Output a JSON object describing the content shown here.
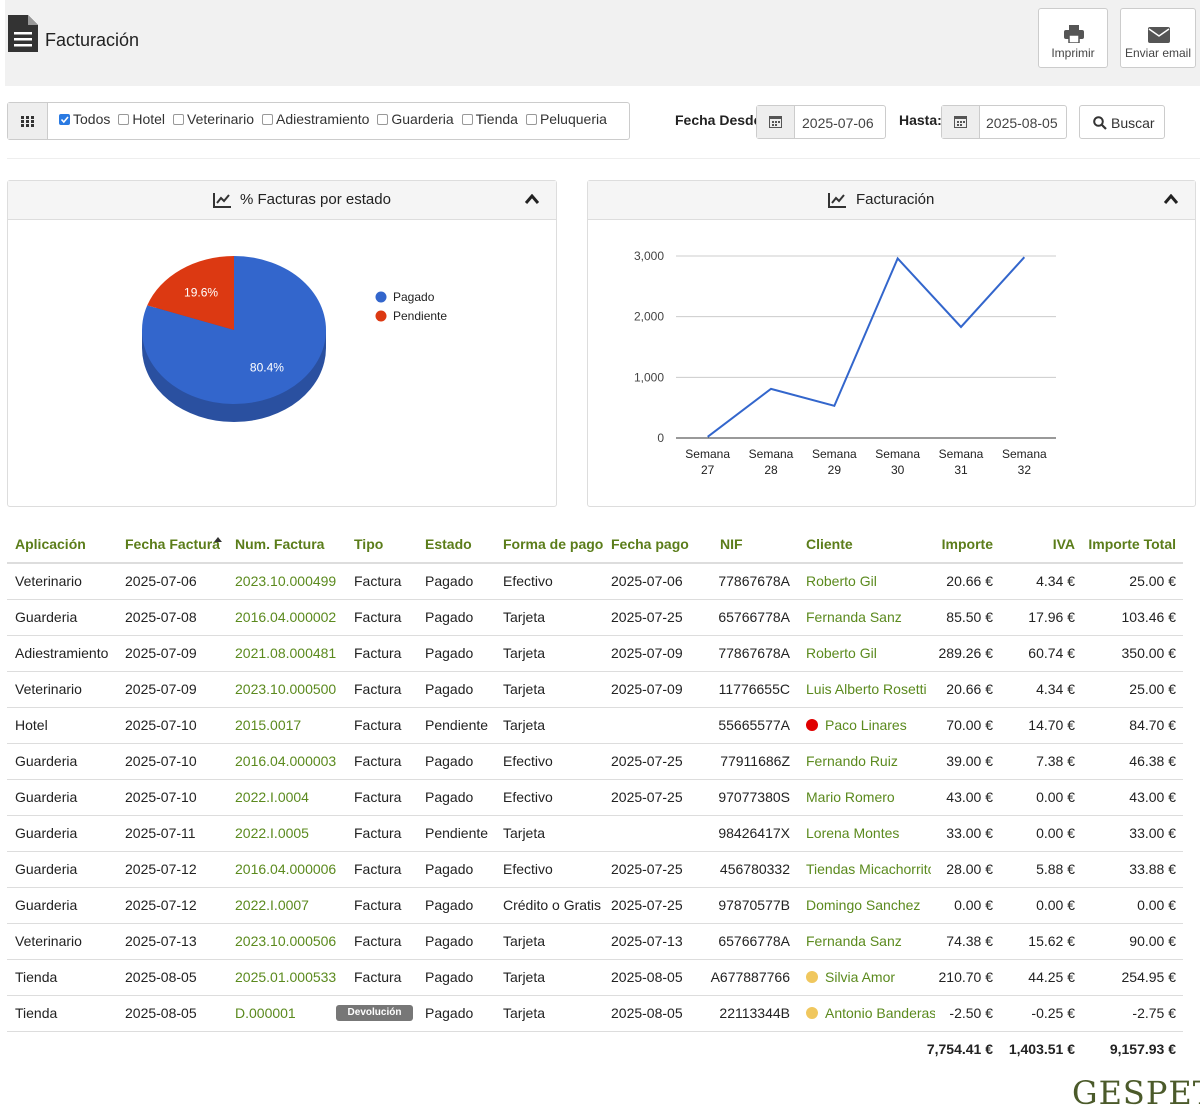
{
  "header": {
    "title": "Facturación",
    "buttons": [
      "Imprimir",
      "Enviar email"
    ]
  },
  "filters": {
    "apps": [
      {
        "label": "Todos",
        "checked": true
      },
      {
        "label": "Hotel",
        "checked": false
      },
      {
        "label": "Veterinario",
        "checked": false
      },
      {
        "label": "Adiestramiento",
        "checked": false
      },
      {
        "label": "Guarderia",
        "checked": false
      },
      {
        "label": "Tienda",
        "checked": false
      },
      {
        "label": "Peluqueria",
        "checked": false
      }
    ],
    "from_label": "Fecha Desde:",
    "from": "2025-07-06",
    "to_label": "Hasta:",
    "to": "2025-08-05",
    "search": "Buscar"
  },
  "chart_data": [
    {
      "type": "pie",
      "title": "% Facturas por estado",
      "categories": [
        "Pagado",
        "Pendiente"
      ],
      "values": [
        80.4,
        19.6
      ],
      "value_labels": [
        "80.4%",
        "19.6%"
      ],
      "colors": [
        "#3366cc",
        "#dc3912"
      ],
      "legend": "right"
    },
    {
      "type": "line",
      "title": "Facturación",
      "categories": [
        "Semana 27",
        "Semana 28",
        "Semana 29",
        "Semana 30",
        "Semana 31",
        "Semana 32"
      ],
      "values": [
        20,
        810,
        530,
        2960,
        1830,
        2980
      ],
      "color": "#3366cc",
      "ylim": [
        0,
        3000
      ],
      "yticks": [
        0,
        {
          "value": 1000,
          "label": "1,000"
        },
        {
          "value": 2000,
          "label": "2,000"
        },
        {
          "value": 3000,
          "label": "3,000"
        }
      ],
      "grid": true
    }
  ],
  "table": {
    "columns": [
      "Aplicación",
      "Fecha Factura",
      "Num. Factura",
      "Tipo",
      "Estado",
      "Forma de pago",
      "Fecha pago",
      "NIF",
      "Cliente",
      "Importe",
      "IVA",
      "Importe Total"
    ],
    "rows": [
      {
        "cells": [
          "Veterinario",
          "2025-07-06",
          "2023.10.000499",
          "Factura",
          "Pagado",
          "Efectivo",
          "2025-07-06",
          "77867678A",
          "Roberto Gil",
          "20.66 €",
          "4.34 €",
          "25.00 €"
        ]
      },
      {
        "cells": [
          "Guarderia",
          "2025-07-08",
          "2016.04.000002",
          "Factura",
          "Pagado",
          "Tarjeta",
          "2025-07-25",
          "65766778A",
          "Fernanda Sanz",
          "85.50 €",
          "17.96 €",
          "103.46 €"
        ]
      },
      {
        "cells": [
          "Adiestramiento",
          "2025-07-09",
          "2021.08.000481",
          "Factura",
          "Pagado",
          "Tarjeta",
          "2025-07-09",
          "77867678A",
          "Roberto Gil",
          "289.26 €",
          "60.74 €",
          "350.00 €"
        ]
      },
      {
        "cells": [
          "Veterinario",
          "2025-07-09",
          "2023.10.000500",
          "Factura",
          "Pagado",
          "Tarjeta",
          "2025-07-09",
          "11776655C",
          "Luis Alberto Rosetti",
          "20.66 €",
          "4.34 €",
          "25.00 €"
        ]
      },
      {
        "cells": [
          "Hotel",
          "2025-07-10",
          "2015.0017",
          "Factura",
          "Pendiente",
          "Tarjeta",
          null,
          "55665577A",
          "Paco Linares",
          "70.00 €",
          "14.70 €",
          "84.70 €"
        ],
        "dot": "#e00000"
      },
      {
        "cells": [
          "Guarderia",
          "2025-07-10",
          "2016.04.000003",
          "Factura",
          "Pagado",
          "Efectivo",
          "2025-07-25",
          "77911686Z",
          "Fernando Ruiz",
          "39.00 €",
          "7.38 €",
          "46.38 €"
        ]
      },
      {
        "cells": [
          "Guarderia",
          "2025-07-10",
          "2022.I.0004",
          "Factura",
          "Pagado",
          "Efectivo",
          "2025-07-25",
          "97077380S",
          "Mario Romero",
          "43.00 €",
          "0.00 €",
          "43.00 €"
        ]
      },
      {
        "cells": [
          "Guarderia",
          "2025-07-11",
          "2022.I.0005",
          "Factura",
          "Pendiente",
          "Tarjeta",
          null,
          "98426417X",
          "Lorena Montes",
          "33.00 €",
          "0.00 €",
          "33.00 €"
        ]
      },
      {
        "cells": [
          "Guarderia",
          "2025-07-12",
          "2016.04.000006",
          "Factura",
          "Pagado",
          "Efectivo",
          "2025-07-25",
          "456780332",
          "Tiendas Micachorrito",
          "28.00 €",
          "5.88 €",
          "33.88 €"
        ]
      },
      {
        "cells": [
          "Guarderia",
          "2025-07-12",
          "2022.I.0007",
          "Factura",
          "Pagado",
          "Crédito o Gratis",
          "2025-07-25",
          "97870577B",
          "Domingo Sanchez",
          "0.00 €",
          "0.00 €",
          "0.00 €"
        ]
      },
      {
        "cells": [
          "Veterinario",
          "2025-07-13",
          "2023.10.000506",
          "Factura",
          "Pagado",
          "Tarjeta",
          "2025-07-13",
          "65766778A",
          "Fernanda Sanz",
          "74.38 €",
          "15.62 €",
          "90.00 €"
        ]
      },
      {
        "cells": [
          "Tienda",
          "2025-08-05",
          "2025.01.000533",
          "Factura",
          "Pagado",
          "Tarjeta",
          "2025-08-05",
          "A677887766",
          "Silvia Amor",
          "210.70 €",
          "44.25 €",
          "254.95 €"
        ],
        "dot": "#f0c75e"
      },
      {
        "cells": [
          "Tienda",
          "2025-08-05",
          "D.000001",
          "Devolución",
          "Pagado",
          "Tarjeta",
          "2025-08-05",
          "22113344B",
          "Antonio Banderas",
          "-2.50 €",
          "-0.25 €",
          "-2.75 €"
        ],
        "dot": "#f0c75e",
        "type_badge": true
      }
    ],
    "totals": [
      "7,754.41 €",
      "1,403.51 €",
      "9,157.93 €"
    ]
  },
  "footer": {
    "logo": "GESPET"
  }
}
